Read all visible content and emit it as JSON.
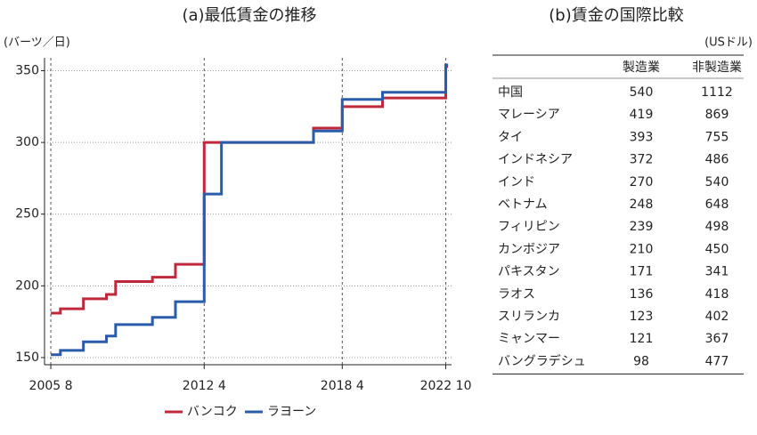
{
  "chart_data": {
    "type": "step",
    "title": "(a)最低賃金の推移",
    "y_label": "(バーツ／日)",
    "x": [
      2005.583,
      2006,
      2007,
      2008,
      2008.4,
      2010,
      2011,
      2012.25,
      2013,
      2017,
      2018.25,
      2020,
      2022.75,
      2022.85
    ],
    "series": [
      {
        "name": "バンコク",
        "color": "#c0283c",
        "values": [
          181,
          184,
          191,
          194,
          203,
          206,
          215,
          300,
          300,
          310,
          325,
          331,
          353,
          353
        ]
      },
      {
        "name": "ラヨーン",
        "color": "#2a5caa",
        "values": [
          152,
          155,
          161,
          165,
          173,
          178,
          189,
          264,
          300,
          308,
          330,
          335,
          354,
          354
        ]
      }
    ],
    "xlim": [
      2005.31,
      2023.0
    ],
    "xticks": [
      {
        "value": 2005.583,
        "label": "2005 8"
      },
      {
        "value": 2012.25,
        "label": "2012 4"
      },
      {
        "value": 2018.25,
        "label": "2018 4"
      },
      {
        "value": 2022.75,
        "label": "2022 10"
      }
    ],
    "ylim": [
      145,
      359
    ],
    "yticks": [
      150,
      200,
      250,
      300,
      350
    ],
    "grid": true
  },
  "table": {
    "title": "(b)賃金の国際比較",
    "unit": "(USドル)",
    "columns": [
      "製造業",
      "非製造業"
    ],
    "rows": [
      [
        "中国",
        540,
        1112
      ],
      [
        "マレーシア",
        419,
        869
      ],
      [
        "タイ",
        393,
        755
      ],
      [
        "インドネシア",
        372,
        486
      ],
      [
        "インド",
        270,
        540
      ],
      [
        "ベトナム",
        248,
        648
      ],
      [
        "フィリピン",
        239,
        498
      ],
      [
        "カンボジア",
        210,
        450
      ],
      [
        "パキスタン",
        171,
        341
      ],
      [
        "ラオス",
        136,
        418
      ],
      [
        "スリランカ",
        123,
        402
      ],
      [
        "ミャンマー",
        121,
        367
      ],
      [
        "バングラデシュ",
        98,
        477
      ]
    ]
  }
}
